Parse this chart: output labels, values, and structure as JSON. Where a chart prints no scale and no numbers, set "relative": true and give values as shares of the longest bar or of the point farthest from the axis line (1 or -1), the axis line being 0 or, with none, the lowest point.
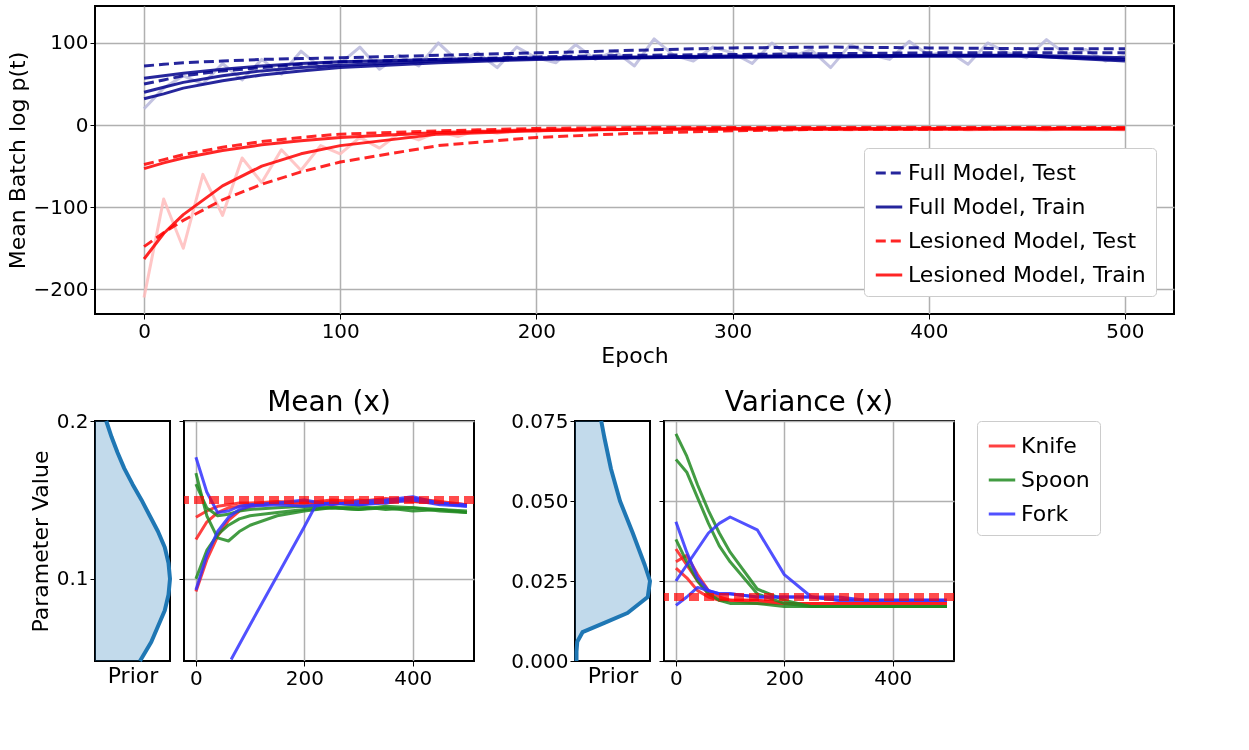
{
  "chart_data": [
    {
      "type": "line",
      "xlabel": "Epoch",
      "ylabel": "Mean Batch log p(t)",
      "xlim": [
        -25,
        525
      ],
      "xticks": [
        0,
        100,
        200,
        300,
        400,
        500
      ],
      "ylim": [
        -230,
        145
      ],
      "yticks": [
        -200,
        -100,
        0,
        100
      ],
      "grid": true,
      "legend": "bottom right",
      "x": [
        0,
        10,
        20,
        40,
        60,
        80,
        100,
        150,
        200,
        250,
        300,
        350,
        400,
        450,
        500
      ],
      "series": [
        {
          "color": "#b8b8dc",
          "line_style": "solid",
          "x": [
            0,
            10,
            20,
            30,
            40,
            50,
            60,
            70,
            80,
            90,
            100,
            110,
            120,
            130,
            140,
            150,
            160,
            170,
            180,
            190,
            200,
            210,
            220,
            230,
            240,
            250,
            260,
            270,
            280,
            290,
            300,
            310,
            320,
            330,
            340,
            350,
            360,
            370,
            380,
            390,
            400,
            410,
            420,
            430,
            440,
            450,
            460,
            470,
            480,
            490,
            500
          ],
          "values": [
            20,
            45,
            60,
            50,
            75,
            55,
            80,
            62,
            90,
            70,
            75,
            95,
            68,
            85,
            72,
            100,
            78,
            88,
            70,
            95,
            82,
            76,
            98,
            80,
            90,
            72,
            105,
            85,
            78,
            95,
            88,
            75,
            100,
            83,
            92,
            70,
            98,
            86,
            80,
            102,
            85,
            90,
            74,
            100,
            88,
            82,
            104,
            86,
            92,
            78,
            85
          ]
        },
        {
          "color": "#ffbcbc",
          "line_style": "solid",
          "x": [
            0,
            10,
            20,
            30,
            40,
            50,
            60,
            70,
            80,
            90,
            100,
            110,
            120,
            130,
            140,
            150,
            160,
            170,
            180,
            190,
            200,
            210,
            220,
            230,
            240,
            250,
            260,
            270,
            280,
            290,
            300,
            310,
            320,
            330,
            340,
            350,
            360,
            370,
            380,
            390,
            400,
            410,
            420,
            430,
            440,
            450,
            460,
            470,
            480,
            490,
            500
          ],
          "values": [
            -210,
            -90,
            -150,
            -60,
            -110,
            -40,
            -70,
            -30,
            -55,
            -25,
            -35,
            -15,
            -28,
            -10,
            -18,
            -8,
            -14,
            -6,
            -10,
            -5,
            -8,
            -4,
            -7,
            -3,
            -6,
            -5,
            -4,
            -6,
            -3,
            -5,
            -4,
            -6,
            -3,
            -5,
            -4,
            -5,
            -6,
            -4,
            -5,
            -3,
            -5,
            -4,
            -6,
            -5,
            -4,
            -5,
            -6,
            -4,
            -5,
            -5,
            -6
          ]
        },
        {
          "name": "Full Model, Test",
          "color": "#00008b",
          "line_style": "dashed",
          "values": [
            72,
            74,
            76,
            78,
            80,
            81,
            82,
            85,
            88,
            91,
            94,
            95,
            94,
            93,
            93
          ]
        },
        {
          "color": "#00008b",
          "line_style": "dashed",
          "values": [
            50,
            55,
            60,
            66,
            70,
            74,
            77,
            80,
            83,
            85,
            86,
            87,
            88,
            88,
            88
          ]
        },
        {
          "name": "Full Model, Train",
          "color": "#00008b",
          "line_style": "solid",
          "values": [
            57,
            60,
            63,
            68,
            72,
            75,
            77,
            80,
            82,
            83,
            84,
            84,
            85,
            85,
            82
          ]
        },
        {
          "color": "#00008b",
          "line_style": "solid",
          "values": [
            40,
            46,
            52,
            60,
            66,
            70,
            73,
            78,
            81,
            82,
            83,
            84,
            84,
            84,
            78
          ]
        },
        {
          "color": "#00008b",
          "line_style": "solid",
          "values": [
            32,
            38,
            45,
            54,
            61,
            66,
            70,
            76,
            80,
            82,
            83,
            83,
            84,
            84,
            80
          ]
        },
        {
          "name": "Lesioned Model, Test",
          "color": "#ff0000",
          "line_style": "dashed",
          "values": [
            -148,
            -131,
            -116,
            -91,
            -72,
            -57,
            -45,
            -25,
            -15,
            -10,
            -7,
            -5,
            -5,
            -4,
            -4
          ]
        },
        {
          "color": "#ff0000",
          "line_style": "dashed",
          "values": [
            -48,
            -42,
            -36,
            -27,
            -20,
            -15,
            -11,
            -7,
            -4,
            -3,
            -3,
            -3,
            -3,
            -3,
            -3
          ]
        },
        {
          "name": "Lesioned Model, Train",
          "color": "#ff0000",
          "line_style": "solid",
          "values": [
            -163,
            -132,
            -109,
            -74,
            -50,
            -35,
            -25,
            -11,
            -7,
            -5,
            -4,
            -4,
            -4,
            -4,
            -4
          ]
        },
        {
          "color": "#ff0000",
          "line_style": "solid",
          "values": [
            -53,
            -46,
            -40,
            -31,
            -24,
            -19,
            -15,
            -9,
            -6,
            -5,
            -5,
            -5,
            -5,
            -5,
            -5
          ]
        }
      ]
    },
    {
      "type": "area",
      "orientation": "horizontal",
      "relative": true,
      "xlabel": "Prior",
      "ylabel": "Parameter Value",
      "ylim": [
        0.048,
        0.2
      ],
      "yticks": [
        0.1,
        0.2
      ],
      "tick_labels": "y",
      "x": [
        0.048,
        0.06,
        0.07,
        0.08,
        0.09,
        0.1,
        0.11,
        0.12,
        0.13,
        0.14,
        0.15,
        0.16,
        0.17,
        0.18,
        0.19,
        0.2
      ],
      "series": [
        {
          "color": "#1f77b4",
          "values": [
            0.6,
            0.75,
            0.84,
            0.93,
            0.98,
            1,
            0.98,
            0.93,
            0.84,
            0.73,
            0.62,
            0.5,
            0.39,
            0.3,
            0.22,
            0.15
          ]
        }
      ]
    },
    {
      "type": "line",
      "title": "Mean (x)",
      "xlim": [
        -22,
        513
      ],
      "xticks": [
        0,
        200,
        400
      ],
      "ylim": [
        0.048,
        0.2
      ],
      "yticks": [
        0.1,
        0.2
      ],
      "grid": true,
      "tick_labels": "x",
      "x": [
        0,
        20,
        40,
        60,
        80,
        100,
        150,
        200,
        250,
        300,
        350,
        400,
        450,
        500
      ],
      "ref_lines": [
        {
          "axis": "y",
          "value": 0.15,
          "color": "#ff0000",
          "line_style": "dashed"
        }
      ],
      "series": [
        {
          "color": "#ff2020",
          "values": [
            0.139,
            0.143,
            0.146,
            0.147,
            0.148,
            0.148,
            0.149,
            0.148,
            0.15,
            0.149,
            0.151,
            0.149,
            0.148,
            0.147
          ]
        },
        {
          "color": "#ff2020",
          "values": [
            0.092,
            0.112,
            0.127,
            0.137,
            0.143,
            0.146,
            0.148,
            0.149,
            0.147,
            0.15,
            0.148,
            0.151,
            0.149,
            0.147
          ]
        },
        {
          "color": "#ff2020",
          "values": [
            0.125,
            0.136,
            0.142,
            0.145,
            0.146,
            0.147,
            0.148,
            0.147,
            0.149,
            0.148,
            0.15,
            0.149,
            0.148,
            0.147
          ]
        },
        {
          "color": "#228b22",
          "values": [
            0.167,
            0.14,
            0.126,
            0.124,
            0.13,
            0.134,
            0.14,
            0.143,
            0.145,
            0.144,
            0.145,
            0.143,
            0.144,
            0.142
          ]
        },
        {
          "color": "#228b22",
          "values": [
            0.16,
            0.145,
            0.14,
            0.141,
            0.143,
            0.144,
            0.145,
            0.146,
            0.145,
            0.146,
            0.144,
            0.145,
            0.143,
            0.142
          ]
        },
        {
          "color": "#228b22",
          "values": [
            0.1,
            0.118,
            0.128,
            0.134,
            0.138,
            0.14,
            0.142,
            0.144,
            0.145,
            0.144,
            0.146,
            0.145,
            0.144,
            0.143
          ]
        },
        {
          "color": "#3333ff",
          "values": [
            0.177,
            0.155,
            0.142,
            0.143,
            0.146,
            0.147,
            0.148,
            0.15,
            0.147,
            0.149,
            0.15,
            0.152,
            0.148,
            0.146
          ]
        },
        {
          "color": "#3333ff",
          "values": [
            0.093,
            0.115,
            0.13,
            0.139,
            0.144,
            0.146,
            0.147,
            0.146,
            0.148,
            0.147,
            0.148,
            0.15,
            0.147,
            0.146
          ]
        },
        {
          "color": "#3333ff",
          "x": [
            65,
            100,
            150,
            200,
            220,
            250,
            300,
            350,
            400,
            450,
            500
          ],
          "values": [
            0.049,
            0.071,
            0.102,
            0.133,
            0.146,
            0.148,
            0.147,
            0.149,
            0.151,
            0.148,
            0.147
          ]
        }
      ]
    },
    {
      "type": "area",
      "orientation": "horizontal",
      "relative": true,
      "xlabel": "Prior",
      "ylim": [
        0,
        0.075
      ],
      "tick_labels": "y",
      "yticks": [
        {
          "value": 0,
          "label": "0.000"
        },
        {
          "value": 0.025,
          "label": "0.025"
        },
        {
          "value": 0.05,
          "label": "0.050"
        },
        {
          "value": 0.075,
          "label": "0.075"
        }
      ],
      "x": [
        0,
        0.003,
        0.006,
        0.009,
        0.012,
        0.015,
        0.02,
        0.025,
        0.03,
        0.035,
        0.04,
        0.05,
        0.06,
        0.07,
        0.075
      ],
      "series": [
        {
          "color": "#1f77b4",
          "values": [
            0.02,
            0.02,
            0.03,
            0.1,
            0.4,
            0.7,
            0.97,
            1,
            0.93,
            0.85,
            0.77,
            0.6,
            0.48,
            0.39,
            0.35
          ]
        }
      ]
    },
    {
      "type": "line",
      "title": "Variance (x)",
      "xlim": [
        -22,
        513
      ],
      "xticks": [
        0,
        200,
        400
      ],
      "ylim": [
        0,
        0.075
      ],
      "yticks": [
        0,
        0.025,
        0.05,
        0.075
      ],
      "grid": true,
      "tick_labels": "x",
      "legend": "right",
      "x": [
        0,
        20,
        40,
        60,
        80,
        100,
        150,
        200,
        250,
        300,
        350,
        400,
        450,
        500
      ],
      "ref_lines": [
        {
          "axis": "y",
          "value": 0.02,
          "color": "#ff0000",
          "line_style": "dashed"
        }
      ],
      "series": [
        {
          "name": "Knife",
          "color": "#ff2020",
          "values": [
            0.035,
            0.03,
            0.025,
            0.021,
            0.019,
            0.019,
            0.019,
            0.018,
            0.018,
            0.018,
            0.018,
            0.018,
            0.018,
            0.018
          ]
        },
        {
          "color": "#ff2020",
          "values": [
            0.031,
            0.033,
            0.027,
            0.022,
            0.02,
            0.019,
            0.019,
            0.018,
            0.018,
            0.018,
            0.018,
            0.018,
            0.018,
            0.018
          ]
        },
        {
          "color": "#ff2020",
          "values": [
            0.029,
            0.026,
            0.022,
            0.02,
            0.019,
            0.019,
            0.018,
            0.018,
            0.018,
            0.018,
            0.018,
            0.018,
            0.018,
            0.018
          ]
        },
        {
          "name": "Spoon",
          "color": "#228b22",
          "values": [
            0.071,
            0.064,
            0.055,
            0.047,
            0.04,
            0.034,
            0.0225,
            0.019,
            0.017,
            0.017,
            0.017,
            0.017,
            0.017,
            0.017
          ]
        },
        {
          "color": "#228b22",
          "values": [
            0.063,
            0.059,
            0.051,
            0.043,
            0.036,
            0.031,
            0.021,
            0.018,
            0.017,
            0.017,
            0.017,
            0.017,
            0.017,
            0.017
          ]
        },
        {
          "color": "#228b22",
          "values": [
            0.038,
            0.031,
            0.025,
            0.021,
            0.019,
            0.018,
            0.018,
            0.017,
            0.017,
            0.017,
            0.017,
            0.017,
            0.017,
            0.017
          ]
        },
        {
          "name": "Fork",
          "color": "#3333ff",
          "values": [
            0.025,
            0.03,
            0.035,
            0.04,
            0.043,
            0.045,
            0.041,
            0.027,
            0.02,
            0.02,
            0.019,
            0.019,
            0.019,
            0.019
          ]
        },
        {
          "color": "#3333ff",
          "values": [
            0.0435,
            0.034,
            0.026,
            0.022,
            0.021,
            0.021,
            0.02,
            0.02,
            0.02,
            0.019,
            0.019,
            0.019,
            0.019,
            0.019
          ]
        },
        {
          "color": "#3333ff",
          "values": [
            0.0174,
            0.02,
            0.023,
            0.022,
            0.021,
            0.021,
            0.02,
            0.02,
            0.02,
            0.019,
            0.019,
            0.019,
            0.019,
            0.019
          ]
        }
      ]
    }
  ]
}
